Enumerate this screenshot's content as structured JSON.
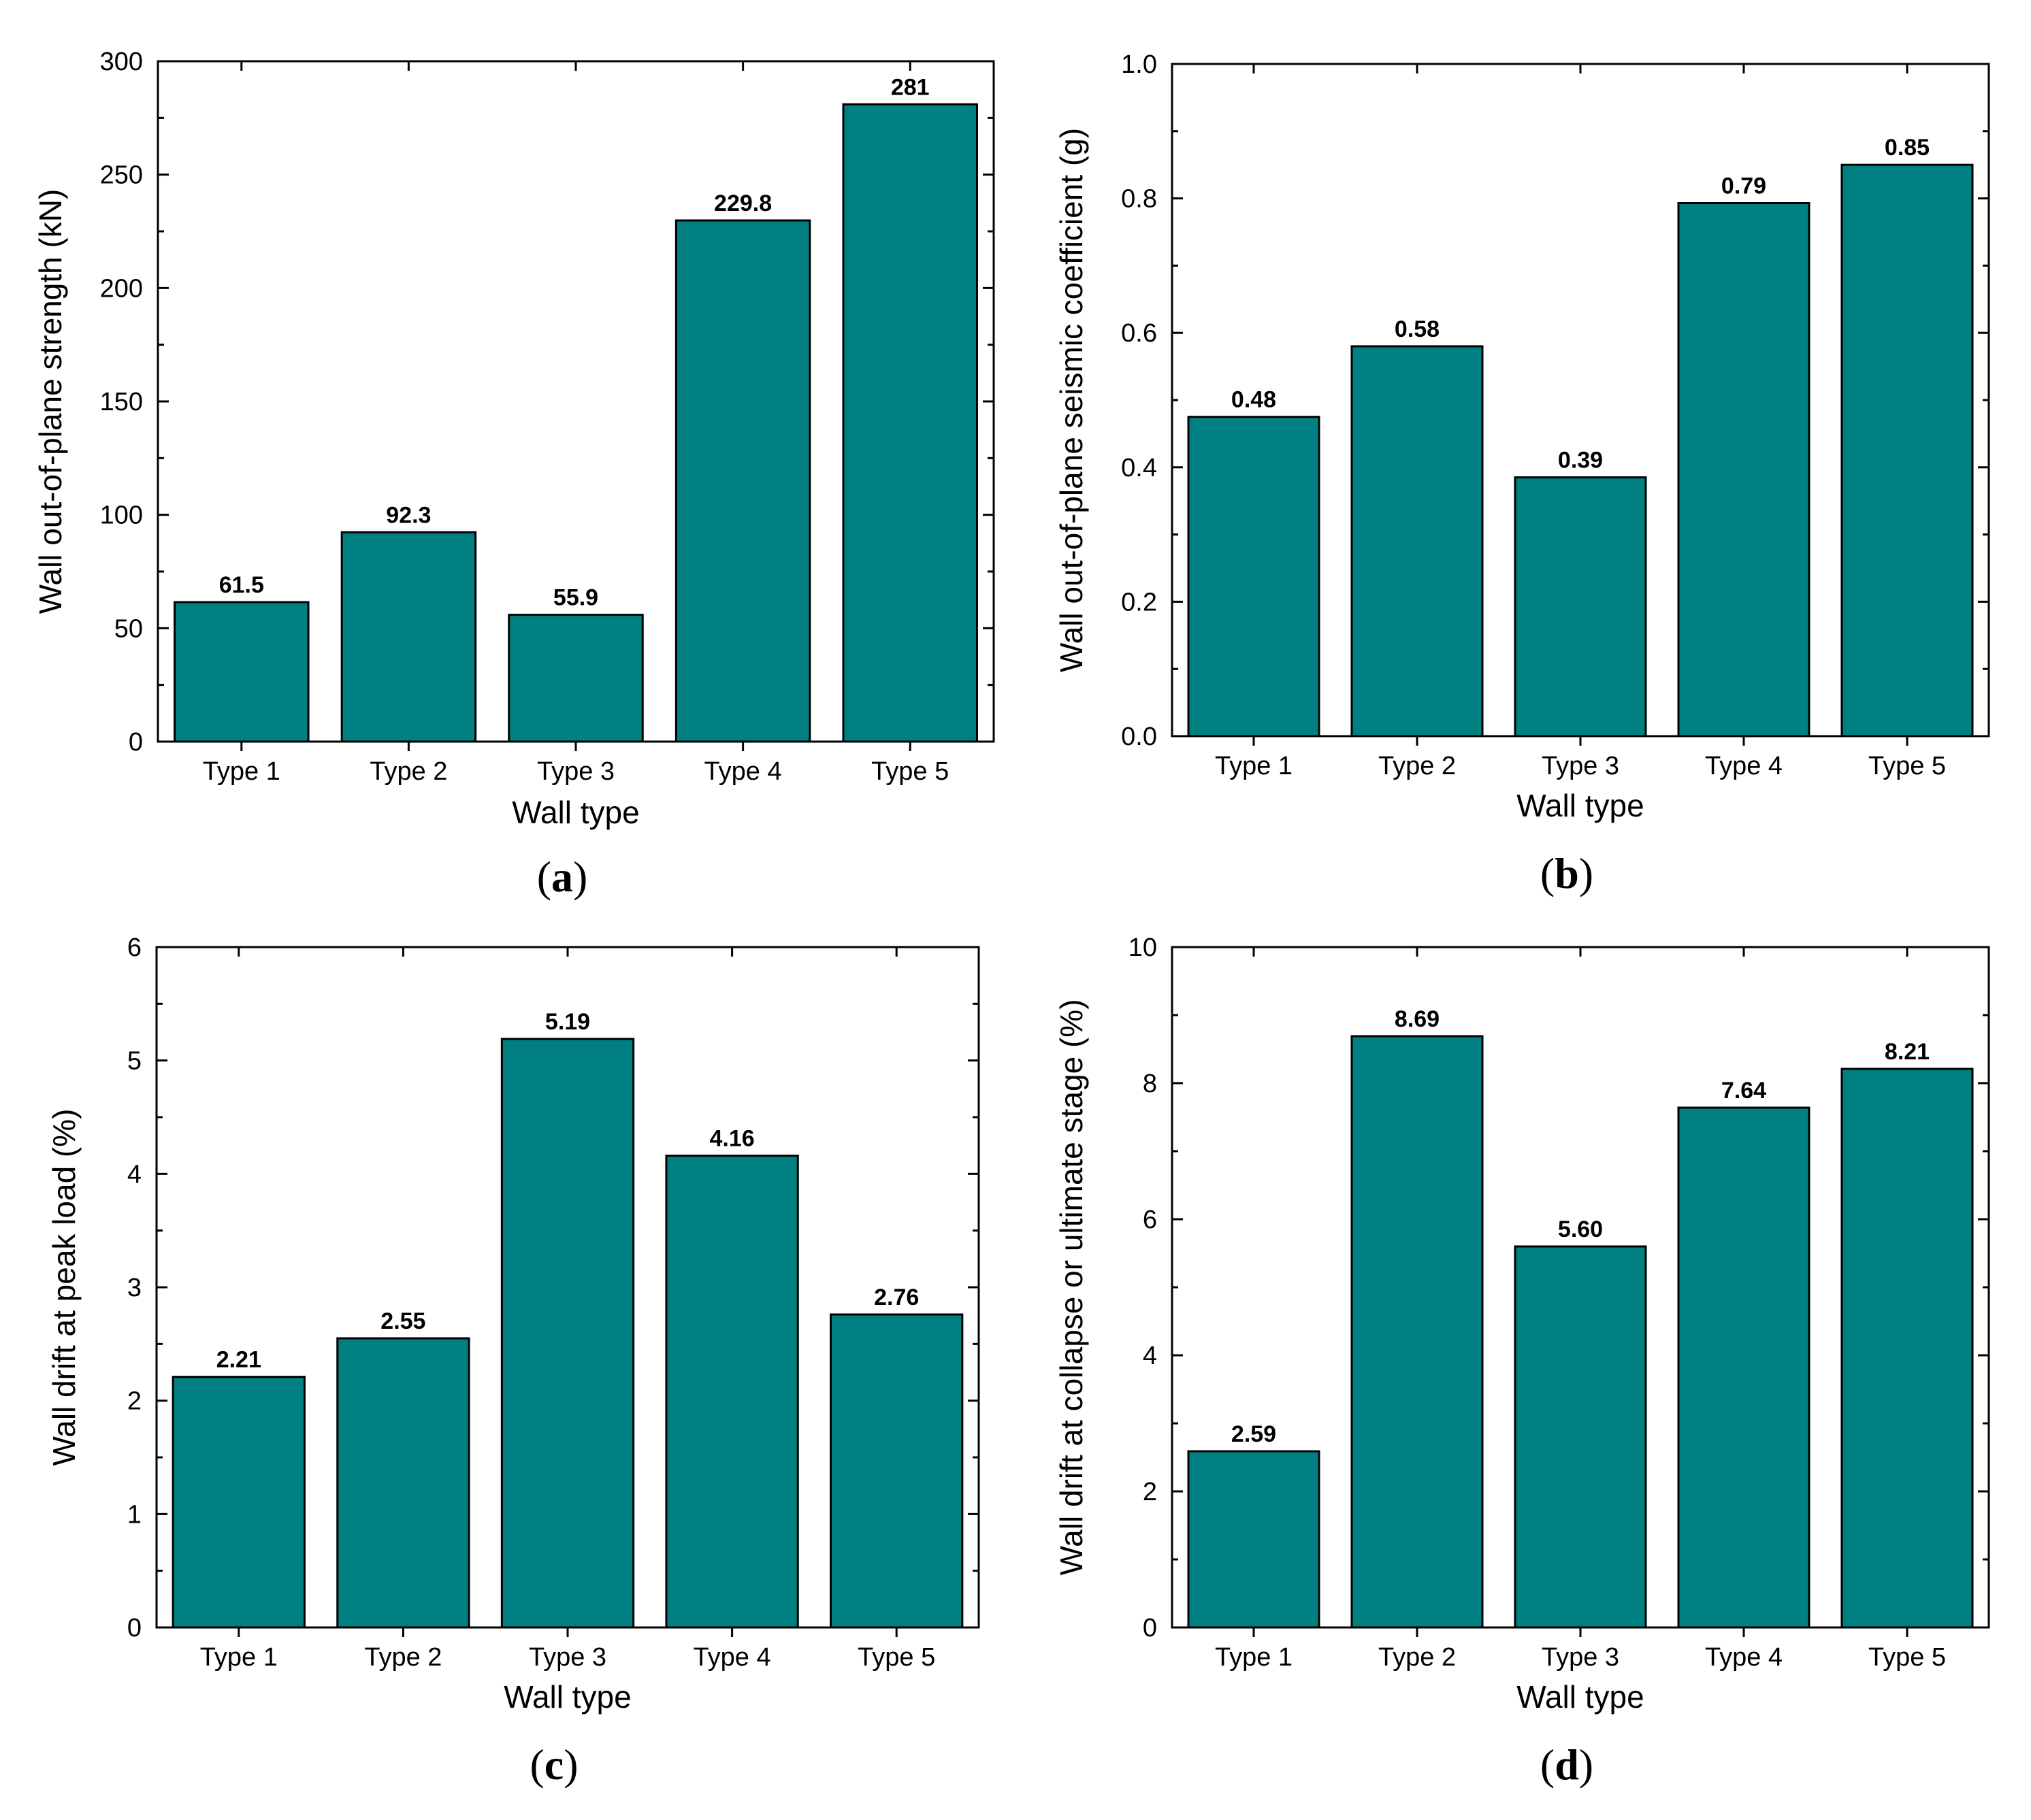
{
  "colors": {
    "bar": "#008080",
    "outline": "#000000"
  },
  "chart_data": [
    {
      "type": "bar",
      "panel": "(a)",
      "panel_letter": "a",
      "title": "",
      "xlabel": "Wall type",
      "ylabel": "Wall out-of-plane strength (kN)",
      "categories": [
        "Type 1",
        "Type 2",
        "Type 3",
        "Type 4",
        "Type 5"
      ],
      "values": [
        61.5,
        92.3,
        55.9,
        229.8,
        281
      ],
      "value_labels": [
        "61.5",
        "92.3",
        "55.9",
        "229.8",
        "281"
      ],
      "ylim": [
        0,
        300
      ],
      "yticks": [
        0,
        50,
        100,
        150,
        200,
        250,
        300
      ],
      "ytick_labels": [
        "0",
        "50",
        "100",
        "150",
        "200",
        "250",
        "300"
      ],
      "grid": false
    },
    {
      "type": "bar",
      "panel": "(b)",
      "panel_letter": "b",
      "title": "",
      "xlabel": "Wall type",
      "ylabel": "Wall out-of-plane seismic coefficient (g)",
      "categories": [
        "Type 1",
        "Type 2",
        "Type 3",
        "Type 4",
        "Type 5"
      ],
      "values": [
        0.475,
        0.58,
        0.385,
        0.793,
        0.85
      ],
      "value_labels": [
        "0.48",
        "0.58",
        "0.39",
        "0.79",
        "0.85"
      ],
      "ylim": [
        0,
        1.0
      ],
      "yticks": [
        0,
        0.2,
        0.4,
        0.6,
        0.8,
        1.0
      ],
      "ytick_labels": [
        "0.0",
        "0.2",
        "0.4",
        "0.6",
        "0.8",
        "1.0"
      ],
      "grid": false
    },
    {
      "type": "bar",
      "panel": "(c)",
      "panel_letter": "c",
      "title": "",
      "xlabel": "Wall type",
      "ylabel": "Wall drift at peak load (%)",
      "categories": [
        "Type 1",
        "Type 2",
        "Type 3",
        "Type 4",
        "Type 5"
      ],
      "values": [
        2.21,
        2.55,
        5.19,
        4.16,
        2.76
      ],
      "value_labels": [
        "2.21",
        "2.55",
        "5.19",
        "4.16",
        "2.76"
      ],
      "ylim": [
        0,
        6
      ],
      "yticks": [
        0,
        1,
        2,
        3,
        4,
        5,
        6
      ],
      "ytick_labels": [
        "0",
        "1",
        "2",
        "3",
        "4",
        "5",
        "6"
      ],
      "grid": false
    },
    {
      "type": "bar",
      "panel": "(d)",
      "panel_letter": "d",
      "title": "",
      "xlabel": "Wall type",
      "ylabel": "Wall drift at collapse or ultimate stage (%)",
      "categories": [
        "Type 1",
        "Type 2",
        "Type 3",
        "Type 4",
        "Type 5"
      ],
      "values": [
        2.59,
        8.69,
        5.6,
        7.64,
        8.21
      ],
      "value_labels": [
        "2.59",
        "8.69",
        "5.60",
        "7.64",
        "8.21"
      ],
      "ylim": [
        0,
        10
      ],
      "yticks": [
        0,
        2,
        4,
        6,
        8,
        10
      ],
      "ytick_labels": [
        "0",
        "2",
        "4",
        "6",
        "8",
        "10"
      ],
      "grid": false
    }
  ]
}
